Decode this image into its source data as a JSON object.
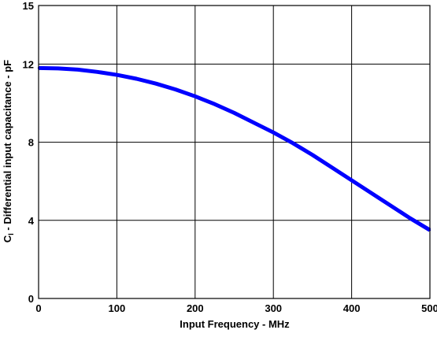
{
  "chart_data": {
    "type": "line",
    "title": "",
    "xlabel": "Input Frequency - MHz",
    "ylabel": {
      "prefix": "C",
      "subscript": "I",
      "suffix": " - Differential input capacitance - pF"
    },
    "xlim": [
      0,
      500
    ],
    "ylim": [
      0,
      15
    ],
    "x_ticks": [
      0,
      100,
      200,
      300,
      400,
      500
    ],
    "y_ticks": [
      0,
      4,
      8,
      12,
      15
    ],
    "grid": true,
    "series": [
      {
        "color": "#0000ff",
        "x": [
          0,
          25,
          50,
          75,
          100,
          125,
          150,
          175,
          200,
          225,
          250,
          275,
          300,
          325,
          350,
          375,
          400,
          425,
          450,
          475,
          500
        ],
        "y": [
          11.8,
          11.78,
          11.72,
          11.6,
          11.45,
          11.25,
          11.0,
          10.7,
          10.35,
          9.95,
          9.5,
          9.0,
          8.5,
          7.95,
          7.35,
          6.7,
          6.05,
          5.4,
          4.75,
          4.1,
          3.5
        ]
      }
    ]
  }
}
